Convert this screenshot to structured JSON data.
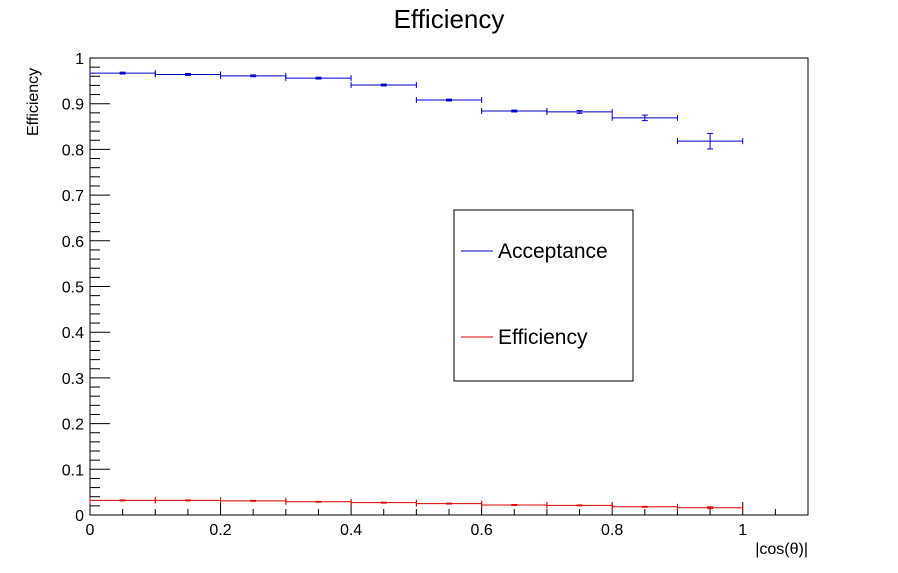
{
  "chart_data": {
    "type": "scatter",
    "title": "Efficiency",
    "xlabel": "|cos(θ)|",
    "ylabel": "Efficiency",
    "xlim": [
      0,
      1.1
    ],
    "ylim": [
      0,
      1
    ],
    "x_ticks": [
      "0",
      "0.2",
      "0.4",
      "0.6",
      "0.8",
      "1"
    ],
    "y_ticks": [
      "0",
      "0.1",
      "0.2",
      "0.3",
      "0.4",
      "0.5",
      "0.6",
      "0.7",
      "0.8",
      "0.9",
      "1"
    ],
    "grid": false,
    "legend_position": "center-right",
    "series": [
      {
        "name": "Acceptance",
        "color": "#0000cc",
        "points": [
          {
            "x": 0.05,
            "xerr": 0.05,
            "y": 0.967,
            "yerr": 0.002
          },
          {
            "x": 0.15,
            "xerr": 0.05,
            "y": 0.964,
            "yerr": 0.002
          },
          {
            "x": 0.25,
            "xerr": 0.05,
            "y": 0.961,
            "yerr": 0.002
          },
          {
            "x": 0.35,
            "xerr": 0.05,
            "y": 0.956,
            "yerr": 0.002
          },
          {
            "x": 0.45,
            "xerr": 0.05,
            "y": 0.941,
            "yerr": 0.002
          },
          {
            "x": 0.55,
            "xerr": 0.05,
            "y": 0.908,
            "yerr": 0.002
          },
          {
            "x": 0.65,
            "xerr": 0.05,
            "y": 0.884,
            "yerr": 0.002
          },
          {
            "x": 0.75,
            "xerr": 0.05,
            "y": 0.882,
            "yerr": 0.003
          },
          {
            "x": 0.85,
            "xerr": 0.05,
            "y": 0.869,
            "yerr": 0.006
          },
          {
            "x": 0.95,
            "xerr": 0.05,
            "y": 0.818,
            "yerr": 0.017
          }
        ]
      },
      {
        "name": "Efficiency",
        "color": "#dd0000",
        "points": [
          {
            "x": 0.05,
            "xerr": 0.05,
            "y": 0.032,
            "yerr": 0.001
          },
          {
            "x": 0.15,
            "xerr": 0.05,
            "y": 0.032,
            "yerr": 0.001
          },
          {
            "x": 0.25,
            "xerr": 0.05,
            "y": 0.031,
            "yerr": 0.001
          },
          {
            "x": 0.35,
            "xerr": 0.05,
            "y": 0.029,
            "yerr": 0.001
          },
          {
            "x": 0.45,
            "xerr": 0.05,
            "y": 0.027,
            "yerr": 0.001
          },
          {
            "x": 0.55,
            "xerr": 0.05,
            "y": 0.025,
            "yerr": 0.001
          },
          {
            "x": 0.65,
            "xerr": 0.05,
            "y": 0.022,
            "yerr": 0.001
          },
          {
            "x": 0.75,
            "xerr": 0.05,
            "y": 0.021,
            "yerr": 0.001
          },
          {
            "x": 0.85,
            "xerr": 0.05,
            "y": 0.018,
            "yerr": 0.001
          },
          {
            "x": 0.95,
            "xerr": 0.05,
            "y": 0.016,
            "yerr": 0.002
          }
        ]
      }
    ]
  }
}
